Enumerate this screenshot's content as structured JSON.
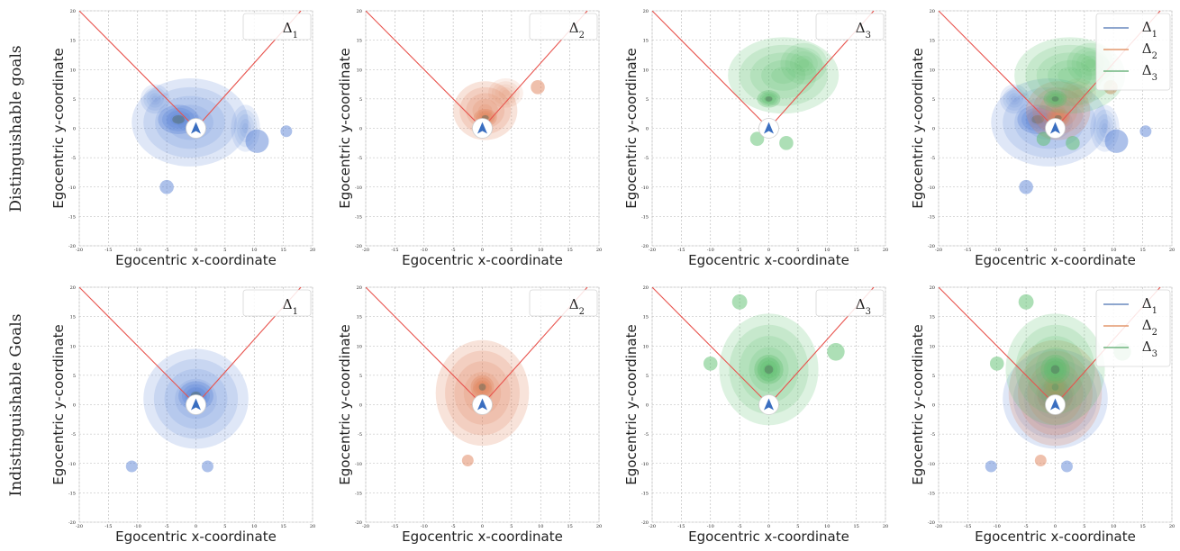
{
  "figure": {
    "row_labels": [
      "Distinguishable goals",
      "Indistinguishable Goals"
    ],
    "xlabel": "Egocentric x-coordinate",
    "ylabel": "Egocentric y-coordinate"
  },
  "colors": {
    "delta1": "#5b84d6",
    "delta2": "#e0825a",
    "delta3": "#5cbf6e",
    "dark_core": "#556b5e",
    "boundary_line": "#e8544e",
    "legend_line_1": "#4a72b0",
    "legend_line_2": "#dd8452",
    "legend_line_3": "#55a868",
    "grid": "#b5b5b5",
    "agent_arrow": "#3a6ec0"
  },
  "icons": {
    "agent_marker": "navigation-arrow-icon"
  },
  "chart_data": [
    {
      "type": "heatmap",
      "row": 0,
      "col": 0,
      "xlabel": "Egocentric x-coordinate",
      "ylabel": "Egocentric y-coordinate",
      "xlim": [
        -20,
        20
      ],
      "ylim": [
        -20,
        20
      ],
      "xticks": [
        -20,
        -15,
        -10,
        -5,
        0,
        5,
        10,
        15,
        20
      ],
      "yticks": [
        -20,
        -15,
        -10,
        -5,
        0,
        5,
        10,
        15,
        20
      ],
      "grid": true,
      "legend": {
        "placement": "top-right",
        "entries": [
          {
            "label": "Δ1",
            "series": 1
          }
        ]
      },
      "boundary_lines": [
        {
          "x": [
            0,
            -20
          ],
          "y": [
            0,
            20
          ]
        },
        {
          "x": [
            0,
            18
          ],
          "y": [
            0,
            20
          ]
        }
      ],
      "series": [
        {
          "name": "Δ1",
          "color": "delta1",
          "blobs": [
            [
              -1,
              1,
              10,
              7.5,
              0.6
            ],
            [
              -3,
              1.5,
              3.5,
              2.5,
              1.0
            ],
            [
              8.5,
              0,
              2.5,
              4,
              0.45
            ],
            [
              -7,
              5,
              2.5,
              2.5,
              0.45
            ]
          ],
          "islands": [
            [
              10.5,
              -2.2,
              2
            ],
            [
              -5,
              -10,
              1.2
            ],
            [
              15.5,
              -0.5,
              1
            ]
          ]
        }
      ]
    },
    {
      "type": "heatmap",
      "row": 0,
      "col": 1,
      "xlabel": "Egocentric x-coordinate",
      "ylabel": "Egocentric y-coordinate",
      "xlim": [
        -20,
        20
      ],
      "ylim": [
        -20,
        20
      ],
      "xticks": [
        -20,
        -15,
        -10,
        -5,
        0,
        5,
        10,
        15,
        20
      ],
      "yticks": [
        -20,
        -15,
        -10,
        -5,
        0,
        5,
        10,
        15,
        20
      ],
      "grid": true,
      "legend": {
        "placement": "top-right",
        "entries": [
          {
            "label": "Δ2",
            "series": 2
          }
        ]
      },
      "boundary_lines": [
        {
          "x": [
            0,
            -20
          ],
          "y": [
            0,
            20
          ]
        },
        {
          "x": [
            0,
            18
          ],
          "y": [
            0,
            20
          ]
        }
      ],
      "series": [
        {
          "name": "Δ2",
          "color": "delta2",
          "blobs": [
            [
              0.5,
              3,
              5.5,
              5,
              0.7
            ],
            [
              0.5,
              1.8,
              2,
              1.5,
              1.0
            ],
            [
              4,
              6,
              3,
              2.5,
              0.4
            ]
          ],
          "islands": [
            [
              9.5,
              7,
              1.2
            ]
          ]
        }
      ]
    },
    {
      "type": "heatmap",
      "row": 0,
      "col": 2,
      "xlabel": "Egocentric x-coordinate",
      "ylabel": "Egocentric y-coordinate",
      "xlim": [
        -20,
        20
      ],
      "ylim": [
        -20,
        20
      ],
      "xticks": [
        -20,
        -15,
        -10,
        -5,
        0,
        5,
        10,
        15,
        20
      ],
      "yticks": [
        -20,
        -15,
        -10,
        -5,
        0,
        5,
        10,
        15,
        20
      ],
      "grid": true,
      "legend": {
        "placement": "top-right",
        "entries": [
          {
            "label": "Δ3",
            "series": 3
          }
        ]
      },
      "boundary_lines": [
        {
          "x": [
            0,
            -20
          ],
          "y": [
            0,
            20
          ]
        },
        {
          "x": [
            0,
            18
          ],
          "y": [
            0,
            20
          ]
        }
      ],
      "series": [
        {
          "name": "Δ3",
          "color": "delta3",
          "blobs": [
            [
              2.5,
              9,
              9.5,
              6.5,
              0.65
            ],
            [
              0,
              5,
              2,
              1.5,
              1.0
            ],
            [
              6,
              11,
              4,
              3.5,
              0.5
            ]
          ],
          "islands": [
            [
              -2,
              -1.8,
              1.2
            ],
            [
              3,
              -2.5,
              1.2
            ]
          ]
        }
      ]
    },
    {
      "type": "heatmap",
      "row": 0,
      "col": 3,
      "xlabel": "Egocentric x-coordinate",
      "ylabel": "Egocentric y-coordinate",
      "xlim": [
        -20,
        20
      ],
      "ylim": [
        -20,
        20
      ],
      "xticks": [
        -20,
        -15,
        -10,
        -5,
        0,
        5,
        10,
        15,
        20
      ],
      "yticks": [
        -20,
        -15,
        -10,
        -5,
        0,
        5,
        10,
        15,
        20
      ],
      "grid": true,
      "legend": {
        "placement": "top-right",
        "entries": [
          {
            "label": "Δ1",
            "series": 1
          },
          {
            "label": "Δ2",
            "series": 2
          },
          {
            "label": "Δ3",
            "series": 3
          }
        ]
      },
      "boundary_lines": [
        {
          "x": [
            0,
            -20
          ],
          "y": [
            0,
            20
          ]
        },
        {
          "x": [
            0,
            18
          ],
          "y": [
            0,
            20
          ]
        }
      ],
      "series": [
        {
          "name": "Δ1",
          "color": "delta1",
          "blobs": [
            [
              -1,
              1,
              10,
              7.5,
              0.6
            ],
            [
              -3,
              1.5,
              3.5,
              2.5,
              1.0
            ],
            [
              8.5,
              0,
              2.5,
              4,
              0.45
            ],
            [
              -7,
              5,
              2.5,
              2.5,
              0.45
            ]
          ],
          "islands": [
            [
              10.5,
              -2.2,
              2
            ],
            [
              -5,
              -10,
              1.2
            ],
            [
              15.5,
              -0.5,
              1
            ]
          ]
        },
        {
          "name": "Δ2",
          "color": "delta2",
          "blobs": [
            [
              0.5,
              3,
              5.5,
              5,
              0.7
            ],
            [
              0.5,
              1.8,
              2,
              1.5,
              1.0
            ],
            [
              4,
              6,
              3,
              2.5,
              0.4
            ]
          ],
          "islands": [
            [
              9.5,
              7,
              1.2
            ]
          ]
        },
        {
          "name": "Δ3",
          "color": "delta3",
          "blobs": [
            [
              2.5,
              9,
              9.5,
              6.5,
              0.65
            ],
            [
              0,
              5,
              2,
              1.5,
              1.0
            ],
            [
              6,
              11,
              4,
              3.5,
              0.5
            ]
          ],
          "islands": [
            [
              -2,
              -1.8,
              1.2
            ],
            [
              3,
              -2.5,
              1.2
            ]
          ]
        }
      ]
    },
    {
      "type": "heatmap",
      "row": 1,
      "col": 0,
      "xlabel": "Egocentric x-coordinate",
      "ylabel": "Egocentric y-coordinate",
      "xlim": [
        -20,
        20
      ],
      "ylim": [
        -20,
        20
      ],
      "xticks": [
        -20,
        -15,
        -10,
        -5,
        0,
        5,
        10,
        15,
        20
      ],
      "yticks": [
        -20,
        -15,
        -10,
        -5,
        0,
        5,
        10,
        15,
        20
      ],
      "grid": true,
      "legend": {
        "placement": "top-right",
        "entries": [
          {
            "label": "Δ1",
            "series": 1
          }
        ]
      },
      "boundary_lines": [
        {
          "x": [
            0,
            -20
          ],
          "y": [
            0,
            20
          ]
        },
        {
          "x": [
            0,
            18
          ],
          "y": [
            0,
            20
          ]
        }
      ],
      "series": [
        {
          "name": "Δ1",
          "color": "delta1",
          "blobs": [
            [
              0,
              1,
              9,
              8.5,
              0.6
            ],
            [
              0,
              1.5,
              3,
              2.5,
              1.0
            ]
          ],
          "islands": [
            [
              -11,
              -10.5,
              1
            ],
            [
              2,
              -10.5,
              1
            ]
          ]
        }
      ]
    },
    {
      "type": "heatmap",
      "row": 1,
      "col": 1,
      "xlabel": "Egocentric x-coordinate",
      "ylabel": "Egocentric y-coordinate",
      "xlim": [
        -20,
        20
      ],
      "ylim": [
        -20,
        20
      ],
      "xticks": [
        -20,
        -15,
        -10,
        -5,
        0,
        5,
        10,
        15,
        20
      ],
      "yticks": [
        -20,
        -15,
        -10,
        -5,
        0,
        5,
        10,
        15,
        20
      ],
      "grid": true,
      "legend": {
        "placement": "top-right",
        "entries": [
          {
            "label": "Δ2",
            "series": 2
          }
        ]
      },
      "boundary_lines": [
        {
          "x": [
            0,
            -20
          ],
          "y": [
            0,
            20
          ]
        },
        {
          "x": [
            0,
            18
          ],
          "y": [
            0,
            20
          ]
        }
      ],
      "series": [
        {
          "name": "Δ2",
          "color": "delta2",
          "blobs": [
            [
              0,
              2,
              8,
              9,
              0.7
            ],
            [
              0,
              3,
              2,
              2,
              1.0
            ]
          ],
          "islands": [
            [
              -2.5,
              -9.5,
              1
            ]
          ]
        }
      ]
    },
    {
      "type": "heatmap",
      "row": 1,
      "col": 2,
      "xlabel": "Egocentric x-coordinate",
      "ylabel": "Egocentric y-coordinate",
      "xlim": [
        -20,
        20
      ],
      "ylim": [
        -20,
        20
      ],
      "xticks": [
        -20,
        -15,
        -10,
        -5,
        0,
        5,
        10,
        15,
        20
      ],
      "yticks": [
        -20,
        -15,
        -10,
        -5,
        0,
        5,
        10,
        15,
        20
      ],
      "grid": true,
      "legend": {
        "placement": "top-right",
        "entries": [
          {
            "label": "Δ3",
            "series": 3
          }
        ]
      },
      "boundary_lines": [
        {
          "x": [
            0,
            -20
          ],
          "y": [
            0,
            20
          ]
        },
        {
          "x": [
            0,
            18
          ],
          "y": [
            0,
            20
          ]
        }
      ],
      "series": [
        {
          "name": "Δ3",
          "color": "delta3",
          "blobs": [
            [
              0,
              6,
              8.5,
              9.5,
              0.65
            ],
            [
              0,
              6,
              2.5,
              2.5,
              1.0
            ]
          ],
          "islands": [
            [
              -5,
              17.5,
              1.3
            ],
            [
              -10,
              7,
              1.2
            ],
            [
              11.5,
              9,
              1.5
            ]
          ]
        }
      ]
    },
    {
      "type": "heatmap",
      "row": 1,
      "col": 3,
      "xlabel": "Egocentric x-coordinate",
      "ylabel": "Egocentric y-coordinate",
      "xlim": [
        -20,
        20
      ],
      "ylim": [
        -20,
        20
      ],
      "xticks": [
        -20,
        -15,
        -10,
        -5,
        0,
        5,
        10,
        15,
        20
      ],
      "yticks": [
        -20,
        -15,
        -10,
        -5,
        0,
        5,
        10,
        15,
        20
      ],
      "grid": true,
      "legend": {
        "placement": "top-right",
        "entries": [
          {
            "label": "Δ1",
            "series": 1
          },
          {
            "label": "Δ2",
            "series": 2
          },
          {
            "label": "Δ3",
            "series": 3
          }
        ]
      },
      "boundary_lines": [
        {
          "x": [
            0,
            -20
          ],
          "y": [
            0,
            20
          ]
        },
        {
          "x": [
            0,
            18
          ],
          "y": [
            0,
            20
          ]
        }
      ],
      "series": [
        {
          "name": "Δ1",
          "color": "delta1",
          "blobs": [
            [
              0,
              1,
              9,
              8.5,
              0.6
            ],
            [
              0,
              1.5,
              3,
              2.5,
              1.0
            ]
          ],
          "islands": [
            [
              -11,
              -10.5,
              1
            ],
            [
              2,
              -10.5,
              1
            ]
          ]
        },
        {
          "name": "Δ2",
          "color": "delta2",
          "blobs": [
            [
              0,
              2,
              8,
              9,
              0.7
            ],
            [
              0,
              3,
              2,
              2,
              1.0
            ]
          ],
          "islands": [
            [
              -2.5,
              -9.5,
              1
            ]
          ]
        },
        {
          "name": "Δ3",
          "color": "delta3",
          "blobs": [
            [
              0,
              6,
              8.5,
              9.5,
              0.65
            ],
            [
              0,
              6,
              2.5,
              2.5,
              1.0
            ]
          ],
          "islands": [
            [
              -5,
              17.5,
              1.3
            ],
            [
              -10,
              7,
              1.2
            ],
            [
              11.5,
              9,
              1.5
            ]
          ]
        }
      ]
    }
  ]
}
